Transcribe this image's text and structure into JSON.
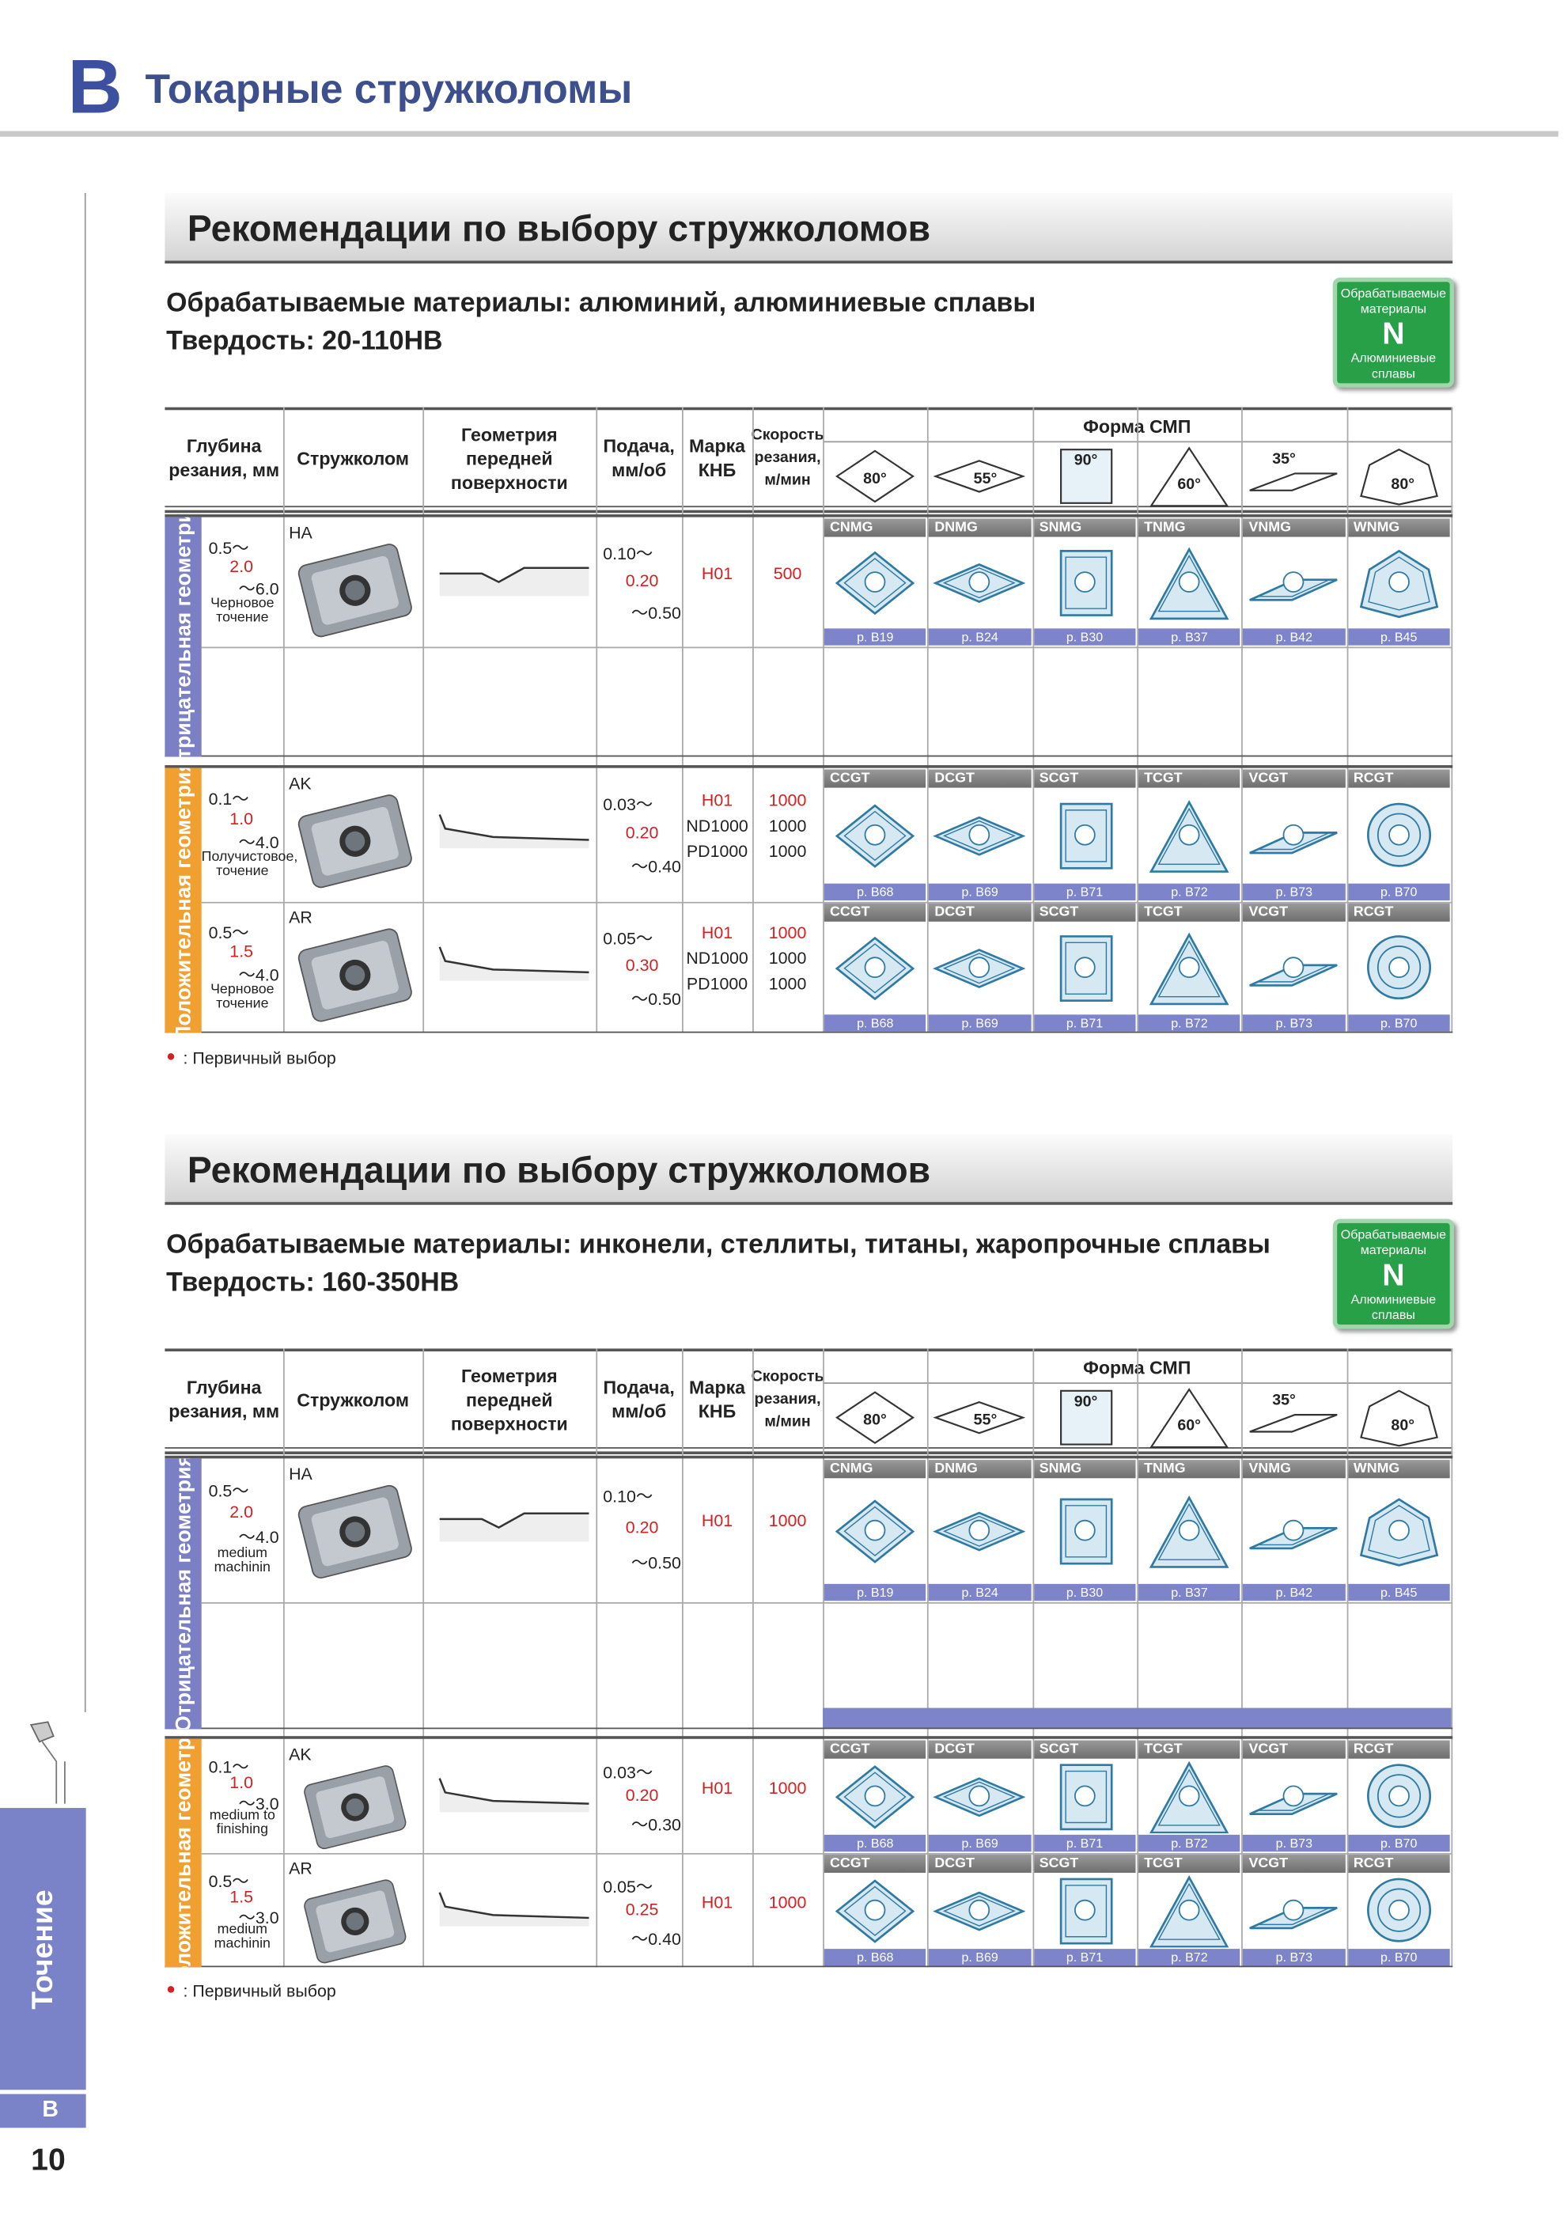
{
  "header": {
    "letter": "B",
    "title": "Токарные стружколомы"
  },
  "sidebar": {
    "tab": "Точение",
    "letter": "B",
    "page_number": "10"
  },
  "sections": [
    {
      "title": "Рекомендации по выбору стружколомов",
      "materials": "Обрабатываемые материалы: алюминий, алюминиевые сплавы",
      "hardness": "Твердость: 20-110HB",
      "badge": {
        "top": "Обрабатываемые материалы",
        "letter": "N",
        "bottom": "Алюминиевые сплавы"
      },
      "columns": [
        "Глубина резания, мм",
        "Стружколом",
        "Геометрия передней поверхности",
        "Подача, мм/об",
        "Марка КНБ",
        "Скорость резания, м/мин"
      ],
      "shape_header": "Форма СМП",
      "shape_angles": [
        "80°",
        "55°",
        "90°",
        "60°",
        "35°",
        "80°"
      ],
      "groups": [
        {
          "label": "Отрицательная геометрия",
          "rows": [
            {
              "depth": [
                "0.5～",
                "2.0",
                "～6.0"
              ],
              "note": "Черновое точение",
              "chipbreaker": "HA",
              "feed": [
                "0.10～",
                "0.20",
                "～0.50"
              ],
              "grades": [
                "H01"
              ],
              "speeds": [
                "500"
              ],
              "inserts": [
                {
                  "code": "CNMG",
                  "page": "p. B19"
                },
                {
                  "code": "DNMG",
                  "page": "p. B24"
                },
                {
                  "code": "SNMG",
                  "page": "p. B30"
                },
                {
                  "code": "TNMG",
                  "page": "p. B37"
                },
                {
                  "code": "VNMG",
                  "page": "p. B42"
                },
                {
                  "code": "WNMG",
                  "page": "p. B45"
                }
              ]
            }
          ]
        },
        {
          "label": "Положительная геометрия",
          "rows": [
            {
              "depth": [
                "0.1～",
                "1.0",
                "～4.0"
              ],
              "note": "Получистовое, точение",
              "chipbreaker": "AK",
              "feed": [
                "0.03～",
                "0.20",
                "～0.40"
              ],
              "grades": [
                "H01",
                "ND1000",
                "PD1000"
              ],
              "speeds": [
                "1000",
                "1000",
                "1000"
              ],
              "inserts": [
                {
                  "code": "CCGT",
                  "page": "p. B68"
                },
                {
                  "code": "DCGT",
                  "page": "p. B69"
                },
                {
                  "code": "SCGT",
                  "page": "p. B71"
                },
                {
                  "code": "TCGT",
                  "page": "p. B72"
                },
                {
                  "code": "VCGT",
                  "page": "p. B73"
                },
                {
                  "code": "RCGT",
                  "page": "p. B70"
                }
              ]
            },
            {
              "depth": [
                "0.5～",
                "1.5",
                "～4.0"
              ],
              "note": "Черновое точение",
              "chipbreaker": "AR",
              "feed": [
                "0.05～",
                "0.30",
                "～0.50"
              ],
              "grades": [
                "H01",
                "ND1000",
                "PD1000"
              ],
              "speeds": [
                "1000",
                "1000",
                "1000"
              ],
              "inserts": [
                {
                  "code": "CCGT",
                  "page": "p. B68"
                },
                {
                  "code": "DCGT",
                  "page": "p. B69"
                },
                {
                  "code": "SCGT",
                  "page": "p. B71"
                },
                {
                  "code": "TCGT",
                  "page": "p. B72"
                },
                {
                  "code": "VCGT",
                  "page": "p. B73"
                },
                {
                  "code": "RCGT",
                  "page": "p. B70"
                }
              ]
            }
          ]
        }
      ],
      "legend": {
        "marker": "●",
        "text": ": Первичный выбор"
      }
    },
    {
      "title": "Рекомендации по выбору стружколомов",
      "materials": "Обрабатываемые материалы: инконели, стеллиты, титаны, жаропрочные сплавы",
      "hardness": "Твердость: 160-350HB",
      "badge": {
        "top": "Обрабатываемые материалы",
        "letter": "N",
        "bottom": "Алюминиевые сплавы"
      },
      "columns": [
        "Глубина резания, мм",
        "Стружколом",
        "Геометрия передней поверхности",
        "Подача, мм/об",
        "Марка КНБ",
        "Скорость резания, м/мин"
      ],
      "shape_header": "Форма СМП",
      "shape_angles": [
        "80°",
        "55°",
        "90°",
        "60°",
        "35°",
        "80°"
      ],
      "groups": [
        {
          "label": "Отрицательная геометрия",
          "rows": [
            {
              "depth": [
                "0.5～",
                "2.0",
                "～4.0"
              ],
              "note": "medium machinin",
              "chipbreaker": "HA",
              "feed": [
                "0.10～",
                "0.20",
                "～0.50"
              ],
              "grades": [
                "H01"
              ],
              "speeds": [
                "1000"
              ],
              "inserts": [
                {
                  "code": "CNMG",
                  "page": "p. B19"
                },
                {
                  "code": "DNMG",
                  "page": "p. B24"
                },
                {
                  "code": "SNMG",
                  "page": "p. B30"
                },
                {
                  "code": "TNMG",
                  "page": "p. B37"
                },
                {
                  "code": "VNMG",
                  "page": "p. B42"
                },
                {
                  "code": "WNMG",
                  "page": "p. B45"
                }
              ]
            }
          ]
        },
        {
          "label": "Положительная геометрия",
          "rows": [
            {
              "depth": [
                "0.1～",
                "1.0",
                "～3.0"
              ],
              "note": "medium to finishing",
              "chipbreaker": "AK",
              "feed": [
                "0.03～",
                "0.20",
                "～0.30"
              ],
              "grades": [
                "H01"
              ],
              "speeds": [
                "1000"
              ],
              "inserts": [
                {
                  "code": "CCGT",
                  "page": "p. B68"
                },
                {
                  "code": "DCGT",
                  "page": "p. B69"
                },
                {
                  "code": "SCGT",
                  "page": "p. B71"
                },
                {
                  "code": "TCGT",
                  "page": "p. B72"
                },
                {
                  "code": "VCGT",
                  "page": "p. B73"
                },
                {
                  "code": "RCGT",
                  "page": "p. B70"
                }
              ]
            },
            {
              "depth": [
                "0.5～",
                "1.5",
                "～3.0"
              ],
              "note": "medium machinin",
              "chipbreaker": "AR",
              "feed": [
                "0.05～",
                "0.25",
                "～0.40"
              ],
              "grades": [
                "H01"
              ],
              "speeds": [
                "1000"
              ],
              "inserts": [
                {
                  "code": "CCGT",
                  "page": "p. B68"
                },
                {
                  "code": "DCGT",
                  "page": "p. B69"
                },
                {
                  "code": "SCGT",
                  "page": "p. B71"
                },
                {
                  "code": "TCGT",
                  "page": "p. B72"
                },
                {
                  "code": "VCGT",
                  "page": "p. B73"
                },
                {
                  "code": "RCGT",
                  "page": "p. B70"
                }
              ]
            }
          ]
        }
      ],
      "legend": {
        "marker": "●",
        "text": ": Первичный выбор"
      }
    }
  ]
}
